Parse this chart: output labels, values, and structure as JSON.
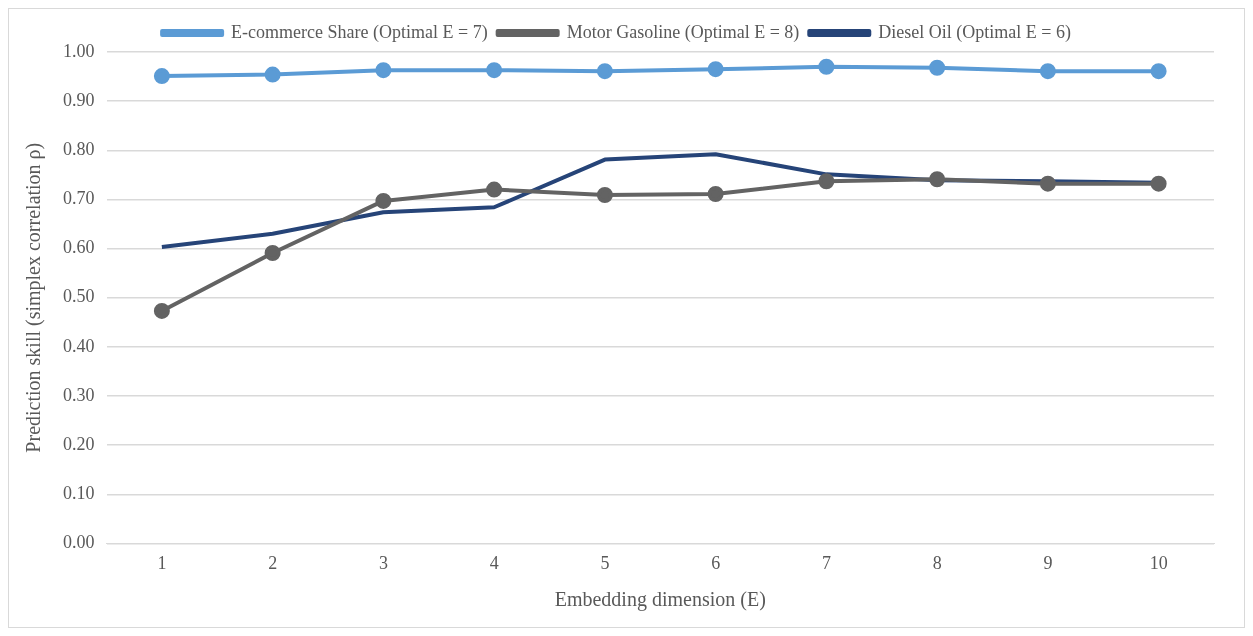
{
  "chart_data": {
    "type": "line",
    "xlabel": "Embedding dimension (E)",
    "ylabel": "Prediction skill (simplex correlation ρ)",
    "categories": [
      "1",
      "2",
      "3",
      "4",
      "5",
      "6",
      "7",
      "8",
      "9",
      "10"
    ],
    "series": [
      {
        "name": "E-commerce Share (Optimal E = 7)",
        "color": "#5b9bd5",
        "marker": "circle",
        "values": [
          0.951,
          0.954,
          0.963,
          0.963,
          0.961,
          0.965,
          0.97,
          0.968,
          0.961,
          0.961
        ]
      },
      {
        "name": "Motor Gasoline (Optimal E = 8)",
        "color": "#636363",
        "marker": "circle",
        "values": [
          0.473,
          0.591,
          0.697,
          0.72,
          0.709,
          0.711,
          0.737,
          0.741,
          0.732,
          0.732
        ]
      },
      {
        "name": "Diesel Oil (Optimal E = 6)",
        "color": "#264478",
        "marker": "none",
        "values": [
          0.603,
          0.63,
          0.674,
          0.684,
          0.781,
          0.792,
          0.751,
          0.739,
          0.737,
          0.734
        ]
      }
    ],
    "ylim": [
      0,
      1
    ],
    "yticks": [
      {
        "value": 0,
        "label": "0.00"
      },
      {
        "value": 0.1,
        "label": "0.10"
      },
      {
        "value": 0.2,
        "label": "0.20"
      },
      {
        "value": 0.3,
        "label": "0.30"
      },
      {
        "value": 0.4,
        "label": "0.40"
      },
      {
        "value": 0.5,
        "label": "0.50"
      },
      {
        "value": 0.6,
        "label": "0.60"
      },
      {
        "value": 0.7,
        "label": "0.70"
      },
      {
        "value": 0.8,
        "label": "0.80"
      },
      {
        "value": 0.9,
        "label": "0.90"
      },
      {
        "value": 1,
        "label": "1.00"
      }
    ],
    "grid": "y",
    "legend": "top",
    "line_style": "solid"
  }
}
